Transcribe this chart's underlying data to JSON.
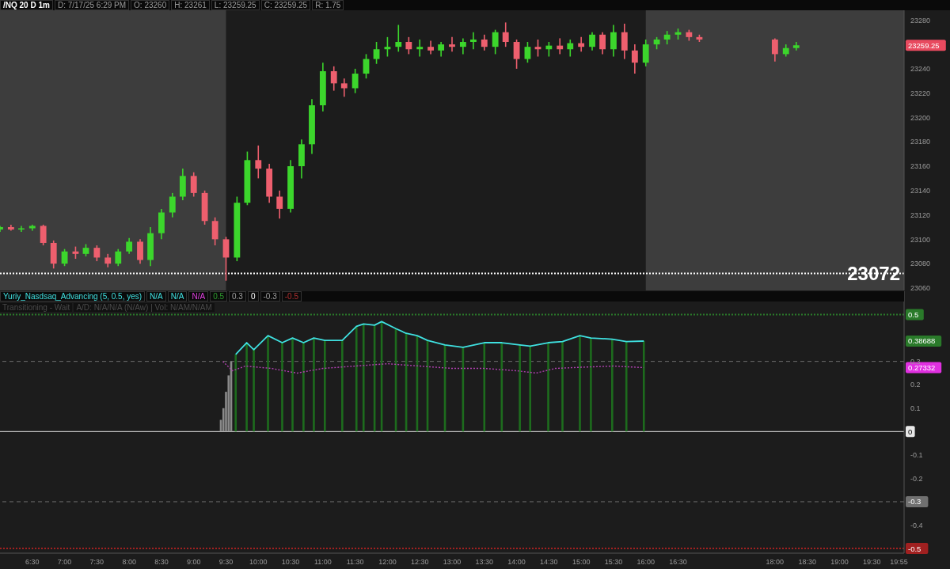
{
  "chart_data": [
    {
      "type": "candlestick",
      "colors": [
        "#3cd62c",
        "#ee5f6e",
        "#3cd62c",
        "#3cd62c",
        "#ee5f6e",
        "#ee5f6e",
        "#3cd62c",
        "#ee5f6e",
        "#3cd62c",
        "#ee5f6e",
        "#ee5f6e",
        "#3cd62c",
        "#3cd62c",
        "#ee5f6e",
        "#3cd62c",
        "#3cd62c",
        "#3cd62c",
        "#3cd62c",
        "#ee5f6e",
        "#ee5f6e",
        "#ee5f6e",
        "#ee5f6e",
        "#3cd62c",
        "#3cd62c",
        "#ee5f6e",
        "#ee5f6e",
        "#ee5f6e",
        "#3cd62c",
        "#3cd62c",
        "#3cd62c",
        "#3cd62c",
        "#ee5f6e",
        "#ee5f6e",
        "#3cd62c",
        "#3cd62c",
        "#3cd62c",
        "#3cd62c",
        "#3cd62c",
        "#ee5f6e",
        "#3cd62c",
        "#ee5f6e",
        "#3cd62c",
        "#ee5f6e",
        "#3cd62c",
        "#3cd62c",
        "#ee5f6e",
        "#3cd62c",
        "#ee5f6e",
        "#ee5f6e",
        "#3cd62c",
        "#ee5f6e",
        "#3cd62c",
        "#ee5f6e",
        "#3cd62c",
        "#ee5f6e",
        "#3cd62c",
        "#ee5f6e",
        "#3cd62c",
        "#ee5f6e",
        "#ee5f6e",
        "#3cd62c",
        "#3cd62c",
        "#3cd62c",
        "#3cd62c",
        "#ee5f6e",
        "#ee5f6e",
        "#ee5f6e",
        "#3cd62c",
        "#3cd62c"
      ],
      "xlim": [
        6.0,
        20.0
      ],
      "ylim": [
        23058,
        23288
      ],
      "yticks": [
        23060,
        23080,
        23100,
        23120,
        23140,
        23160,
        23180,
        23200,
        23220,
        23240,
        23280
      ],
      "tick_labels": "y",
      "grid": false,
      "x": [
        6.0,
        6.17,
        6.33,
        6.5,
        6.67,
        6.83,
        7.0,
        7.17,
        7.33,
        7.5,
        7.67,
        7.83,
        8.0,
        8.17,
        8.33,
        8.5,
        8.67,
        8.83,
        9.0,
        9.17,
        9.33,
        9.5,
        9.67,
        9.83,
        10.0,
        10.17,
        10.33,
        10.5,
        10.67,
        10.83,
        11.0,
        11.17,
        11.33,
        11.5,
        11.67,
        11.83,
        12.0,
        12.17,
        12.33,
        12.5,
        12.67,
        12.83,
        13.0,
        13.17,
        13.33,
        13.5,
        13.67,
        13.83,
        14.0,
        14.17,
        14.33,
        14.5,
        14.67,
        14.83,
        15.0,
        15.17,
        15.33,
        15.5,
        15.67,
        15.83,
        16.0,
        16.17,
        16.33,
        16.5,
        16.67,
        16.83,
        18.0,
        18.17,
        18.33
      ],
      "ohlc": [
        [
          23108,
          23111,
          23106,
          23110
        ],
        [
          23110,
          23112,
          23107,
          23108
        ],
        [
          23108,
          23111,
          23106,
          23109
        ],
        [
          23109,
          23112,
          23107,
          23111
        ],
        [
          23111,
          23112,
          23095,
          23097
        ],
        [
          23097,
          23099,
          23076,
          23080
        ],
        [
          23080,
          23092,
          23078,
          23090
        ],
        [
          23090,
          23094,
          23084,
          23088
        ],
        [
          23088,
          23096,
          23086,
          23093
        ],
        [
          23093,
          23095,
          23082,
          23085
        ],
        [
          23085,
          23088,
          23077,
          23080
        ],
        [
          23080,
          23092,
          23078,
          23090
        ],
        [
          23090,
          23101,
          23088,
          23098
        ],
        [
          23098,
          23100,
          23080,
          23083
        ],
        [
          23083,
          23110,
          23078,
          23105
        ],
        [
          23105,
          23125,
          23100,
          23122
        ],
        [
          23122,
          23138,
          23118,
          23135
        ],
        [
          23135,
          23158,
          23132,
          23152
        ],
        [
          23152,
          23155,
          23135,
          23138
        ],
        [
          23138,
          23140,
          23112,
          23115
        ],
        [
          23115,
          23118,
          23095,
          23100
        ],
        [
          23100,
          23102,
          23066,
          23085
        ],
        [
          23085,
          23135,
          23082,
          23130
        ],
        [
          23130,
          23172,
          23128,
          23165
        ],
        [
          23165,
          23177,
          23150,
          23158
        ],
        [
          23158,
          23162,
          23130,
          23135
        ],
        [
          23135,
          23140,
          23117,
          23125
        ],
        [
          23125,
          23165,
          23122,
          23160
        ],
        [
          23160,
          23182,
          23150,
          23178
        ],
        [
          23178,
          23215,
          23170,
          23210
        ],
        [
          23210,
          23245,
          23205,
          23238
        ],
        [
          23238,
          23242,
          23222,
          23228
        ],
        [
          23228,
          23232,
          23217,
          23224
        ],
        [
          23224,
          23240,
          23220,
          23236
        ],
        [
          23236,
          23252,
          23232,
          23248
        ],
        [
          23248,
          23262,
          23244,
          23256
        ],
        [
          23256,
          23266,
          23250,
          23258
        ],
        [
          23258,
          23276,
          23254,
          23262
        ],
        [
          23262,
          23266,
          23252,
          23256
        ],
        [
          23256,
          23264,
          23250,
          23258
        ],
        [
          23258,
          23263,
          23252,
          23255
        ],
        [
          23255,
          23262,
          23250,
          23260
        ],
        [
          23260,
          23266,
          23254,
          23258
        ],
        [
          23258,
          23265,
          23252,
          23262
        ],
        [
          23262,
          23270,
          23256,
          23264
        ],
        [
          23264,
          23268,
          23255,
          23258
        ],
        [
          23258,
          23272,
          23252,
          23270
        ],
        [
          23270,
          23278,
          23258,
          23262
        ],
        [
          23262,
          23264,
          23240,
          23248
        ],
        [
          23248,
          23262,
          23245,
          23258
        ],
        [
          23258,
          23264,
          23250,
          23256
        ],
        [
          23256,
          23262,
          23250,
          23259
        ],
        [
          23259,
          23265,
          23252,
          23256
        ],
        [
          23256,
          23264,
          23250,
          23261
        ],
        [
          23261,
          23266,
          23254,
          23258
        ],
        [
          23258,
          23270,
          23255,
          23268
        ],
        [
          23268,
          23270,
          23252,
          23256
        ],
        [
          23256,
          23276,
          23250,
          23270
        ],
        [
          23270,
          23277,
          23248,
          23255
        ],
        [
          23255,
          23260,
          23236,
          23245
        ],
        [
          23245,
          23264,
          23242,
          23260
        ],
        [
          23260,
          23266,
          23256,
          23264
        ],
        [
          23264,
          23271,
          23260,
          23268
        ],
        [
          23268,
          23273,
          23264,
          23270
        ],
        [
          23270,
          23272,
          23263,
          23266
        ],
        [
          23266,
          23268,
          23262,
          23264
        ],
        [
          23264,
          23265,
          23246,
          23252
        ],
        [
          23252,
          23260,
          23250,
          23257
        ],
        [
          23257,
          23262,
          23255,
          23259.25
        ]
      ],
      "bands": [
        {
          "axis": "x",
          "from": 6.0,
          "to": 9.5,
          "color": "#3d3d3d"
        },
        {
          "axis": "x",
          "from": 16.0,
          "to": 20.0,
          "color": "#3d3d3d"
        }
      ],
      "ref_lines": [
        {
          "axis": "y",
          "value": 23072,
          "label": "23072",
          "color": "#ffffff",
          "line_style": "dotted"
        }
      ],
      "annotations": [
        "/NQ 20 D 1m",
        "D: 7/17/25 6:29 PM",
        "O: 23260",
        "H: 23261",
        "L: 23259.25",
        "C: 23259.25",
        "R: 1.75",
        "23259.25"
      ]
    },
    {
      "type": "bar",
      "xlim": [
        6.0,
        20.0
      ],
      "ylim": [
        -0.52,
        0.6
      ],
      "yticks": [
        0.3,
        0.2,
        0.1,
        -0.1,
        -0.2,
        -0.4
      ],
      "grid": false,
      "xticks": [
        {
          "value": 6.5,
          "label": "6:30"
        },
        {
          "value": 7,
          "label": "7:00"
        },
        {
          "value": 7.5,
          "label": "7:30"
        },
        {
          "value": 8,
          "label": "8:00"
        },
        {
          "value": 8.5,
          "label": "8:30"
        },
        {
          "value": 9,
          "label": "9:00"
        },
        {
          "value": 9.5,
          "label": "9:30"
        },
        {
          "value": 10,
          "label": "10:00"
        },
        {
          "value": 10.5,
          "label": "10:30"
        },
        {
          "value": 11,
          "label": "11:00"
        },
        {
          "value": 11.5,
          "label": "11:30"
        },
        {
          "value": 12,
          "label": "12:00"
        },
        {
          "value": 12.5,
          "label": "12:30"
        },
        {
          "value": 13,
          "label": "13:00"
        },
        {
          "value": 13.5,
          "label": "13:30"
        },
        {
          "value": 14,
          "label": "14:00"
        },
        {
          "value": 14.5,
          "label": "14:30"
        },
        {
          "value": 15,
          "label": "15:00"
        },
        {
          "value": 15.5,
          "label": "15:30"
        },
        {
          "value": 16,
          "label": "16:00"
        },
        {
          "value": 16.5,
          "label": "16:30"
        },
        {
          "value": 18,
          "label": "18:00"
        },
        {
          "value": 18.5,
          "label": "18:30"
        },
        {
          "value": 19,
          "label": "19:00"
        },
        {
          "value": 19.5,
          "label": "19:30"
        },
        {
          "value": 19.92,
          "label": "19:55"
        }
      ],
      "series": [
        {
          "type": "bar",
          "x": [
            9.42,
            9.46,
            9.5,
            9.54,
            9.58,
            9.65,
            9.82,
            9.93,
            10.15,
            10.37,
            10.53,
            10.7,
            10.86,
            11.03,
            11.3,
            11.52,
            11.63,
            11.8,
            11.91,
            12.13,
            12.29,
            12.46,
            12.62,
            12.89,
            13.17,
            13.5,
            13.77,
            14.05,
            14.21,
            14.49,
            14.71,
            14.98,
            15.15,
            15.48,
            15.7,
            15.97
          ],
          "values": [
            0.05,
            0.1,
            0.17,
            0.24,
            0.3,
            0.33,
            0.38,
            0.35,
            0.41,
            0.38,
            0.4,
            0.38,
            0.4,
            0.39,
            0.39,
            0.45,
            0.46,
            0.455,
            0.47,
            0.44,
            0.42,
            0.41,
            0.39,
            0.37,
            0.36,
            0.38,
            0.38,
            0.37,
            0.365,
            0.38,
            0.385,
            0.41,
            0.4,
            0.395,
            0.385,
            0.38688
          ],
          "colors": [
            "#8a8a8a",
            "#8a8a8a",
            "#8a8a8a",
            "#8a8a8a",
            "#8a8a8a",
            "#1d6b1d",
            "#1d6b1d",
            "#1d6b1d",
            "#1d6b1d",
            "#1d6b1d",
            "#1d6b1d",
            "#1d6b1d",
            "#1d6b1d",
            "#1d6b1d",
            "#1d6b1d",
            "#1d6b1d",
            "#1d6b1d",
            "#1d6b1d",
            "#1d6b1d",
            "#1d6b1d",
            "#1d6b1d",
            "#1d6b1d",
            "#1d6b1d",
            "#1d6b1d",
            "#1d6b1d",
            "#1d6b1d",
            "#1d6b1d",
            "#1d6b1d",
            "#1d6b1d",
            "#1d6b1d",
            "#1d6b1d",
            "#1d6b1d",
            "#1d6b1d",
            "#1d6b1d",
            "#1d6b1d",
            "#1d6b1d"
          ]
        },
        {
          "type": "line",
          "color": "#3fe0e0",
          "x": [
            9.65,
            9.82,
            9.93,
            10.15,
            10.37,
            10.53,
            10.7,
            10.86,
            11.03,
            11.3,
            11.52,
            11.63,
            11.8,
            11.91,
            12.13,
            12.29,
            12.46,
            12.62,
            12.89,
            13.17,
            13.5,
            13.77,
            14.05,
            14.21,
            14.49,
            14.71,
            14.98,
            15.15,
            15.48,
            15.7,
            15.97
          ],
          "values": [
            0.33,
            0.38,
            0.35,
            0.41,
            0.38,
            0.4,
            0.38,
            0.4,
            0.39,
            0.39,
            0.45,
            0.46,
            0.455,
            0.47,
            0.44,
            0.42,
            0.41,
            0.39,
            0.37,
            0.36,
            0.38,
            0.38,
            0.37,
            0.365,
            0.38,
            0.385,
            0.41,
            0.4,
            0.395,
            0.385,
            0.38688
          ]
        },
        {
          "type": "line",
          "color": "#b040b0",
          "line_style": "dotted",
          "x": [
            9.45,
            9.6,
            9.8,
            10.2,
            10.6,
            11.0,
            11.5,
            12.0,
            12.5,
            13.0,
            13.5,
            14.0,
            14.3,
            14.6,
            15.0,
            15.5,
            15.97
          ],
          "values": [
            0.3,
            0.26,
            0.28,
            0.27,
            0.25,
            0.27,
            0.28,
            0.29,
            0.28,
            0.27,
            0.27,
            0.26,
            0.25,
            0.27,
            0.275,
            0.28,
            0.27332
          ]
        }
      ],
      "ref_lines": [
        {
          "axis": "y",
          "value": 0.5,
          "label": "0.5",
          "color": "#2a7a2a",
          "line_style": "dotted"
        },
        {
          "axis": "y",
          "value": 0.3,
          "color": "#707070",
          "line_style": "dashed"
        },
        {
          "axis": "y",
          "value": 0,
          "label": "0",
          "color": "#e8e8e8",
          "line_style": "solid"
        },
        {
          "axis": "y",
          "value": -0.3,
          "label": "-0.3",
          "color": "#707070",
          "line_style": "dashed"
        },
        {
          "axis": "y",
          "value": -0.5,
          "label": "-0.5",
          "color": "#a02020",
          "line_style": "dotted"
        }
      ],
      "annotations": [
        "Yuriy_Nasdsaq_Advancing (5, 0.5, yes)",
        "N/A",
        "N/A",
        "N/A",
        "0.5",
        "0.3",
        "0",
        "-0.3",
        "-0.5",
        "Transitioning - Wait",
        "A/D: N/A/N/A (N/Aw) | Vol: N/AM/N/AM",
        "0.38688",
        "0.27332"
      ]
    }
  ]
}
